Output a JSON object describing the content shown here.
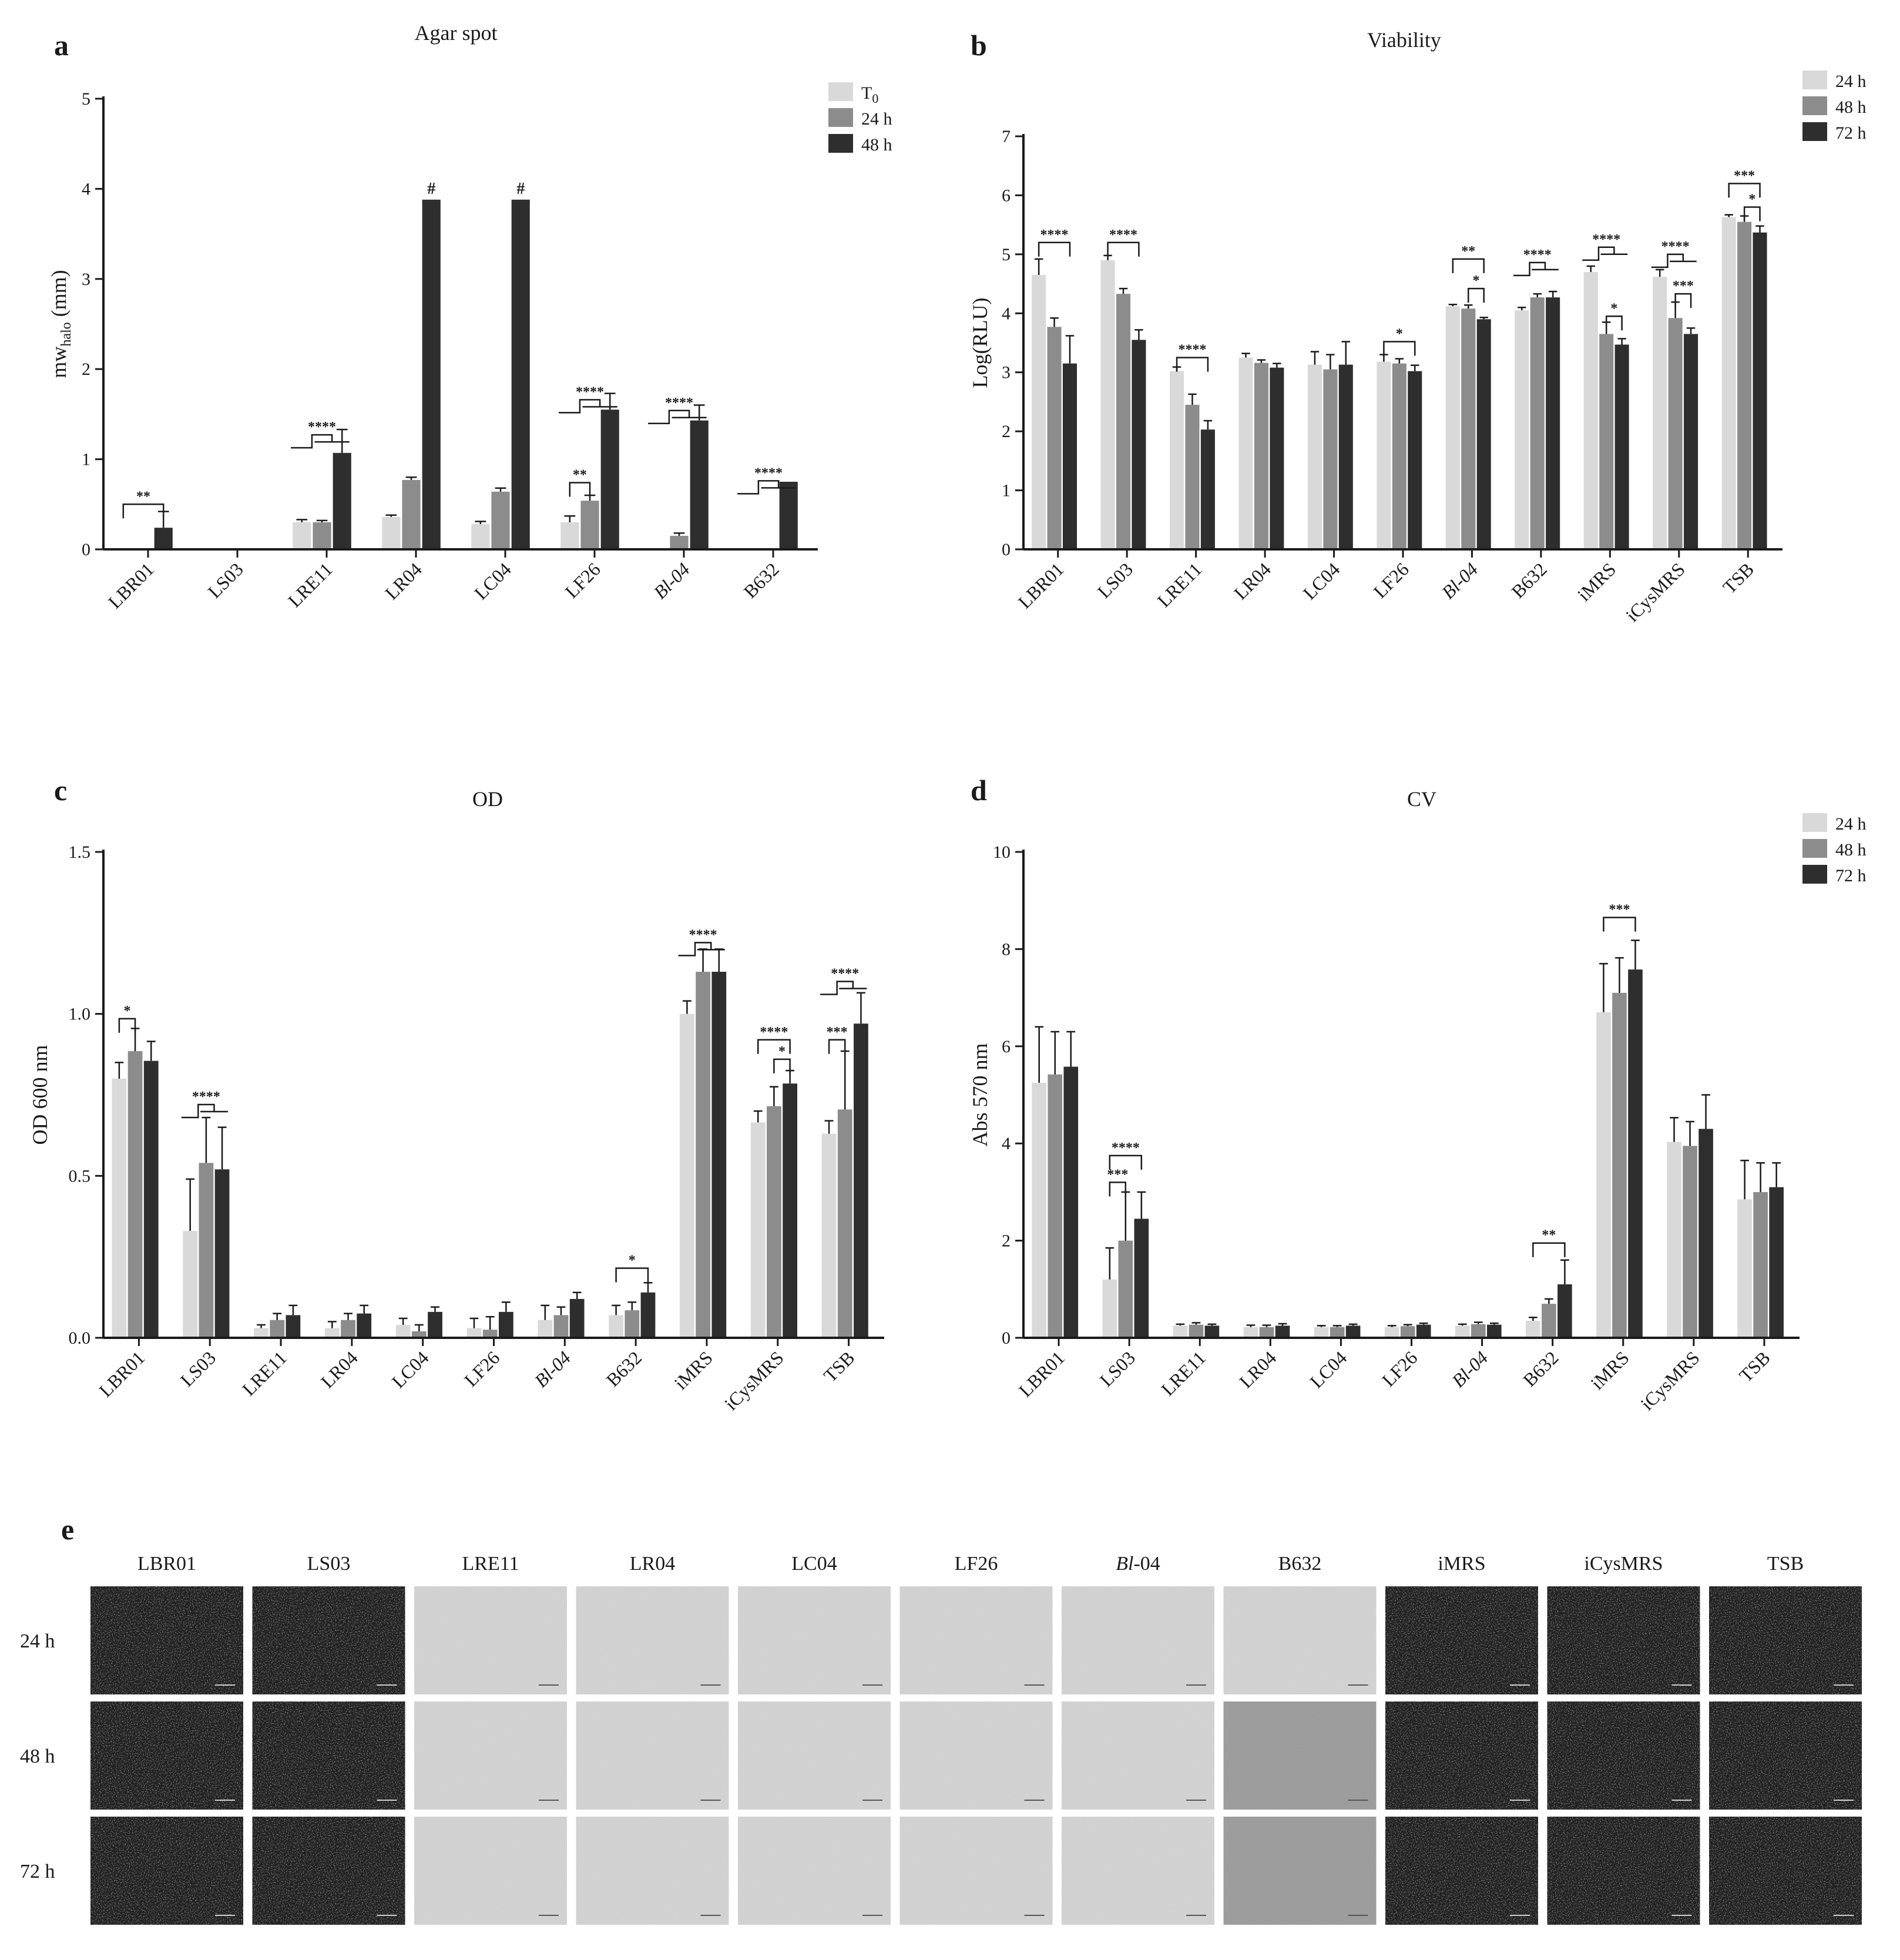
{
  "colors": {
    "light": "#d9d9d9",
    "mid": "#8c8c8c",
    "dark": "#2e2e2e",
    "axis": "#1a1a1a"
  },
  "chart_data": [
    {
      "panel": "a",
      "type": "bar",
      "title": "Agar spot",
      "ylabel": "mw_halo (mm)",
      "ylim": [
        0,
        5
      ],
      "yticks": [
        0,
        1,
        2,
        3,
        4,
        5
      ],
      "categories": [
        "LBR01",
        "LS03",
        "LRE11",
        "LR04",
        "LC04",
        "LF26",
        "Bl-04",
        "B632"
      ],
      "italic_categories": [
        "Bl-04"
      ],
      "legend_position": "top-right",
      "series": [
        {
          "name": "T0",
          "color": "light",
          "values": [
            0,
            0,
            0.3,
            0.36,
            0.28,
            0.3,
            0,
            0
          ],
          "errors": [
            0,
            0,
            0.03,
            0.02,
            0.03,
            0.07,
            0,
            0
          ]
        },
        {
          "name": "24 h",
          "color": "mid",
          "values": [
            0,
            0,
            0.3,
            0.77,
            0.64,
            0.54,
            0.15,
            0
          ],
          "errors": [
            0,
            0,
            0.02,
            0.03,
            0.04,
            0.06,
            0.03,
            0
          ]
        },
        {
          "name": "48 h",
          "color": "dark",
          "values": [
            0.24,
            0,
            1.07,
            3.88,
            3.88,
            1.55,
            1.43,
            0.75
          ],
          "errors": [
            0.18,
            0,
            0.26,
            0,
            0,
            0.18,
            0.17,
            0
          ]
        }
      ],
      "annotations": [
        {
          "type": "bracket",
          "from": [
            0,
            0
          ],
          "to": [
            0,
            2
          ],
          "y": 0.5,
          "label": "**"
        },
        {
          "type": "group",
          "from": [
            2,
            0
          ],
          "mid": [
            2,
            1
          ],
          "to": [
            2,
            2
          ],
          "y": 1.27,
          "label": "****"
        },
        {
          "type": "marker",
          "at": [
            3,
            2
          ],
          "label": "#"
        },
        {
          "type": "marker",
          "at": [
            4,
            2
          ],
          "label": "#"
        },
        {
          "type": "bracket",
          "from": [
            5,
            0
          ],
          "to": [
            5,
            1
          ],
          "y": 0.74,
          "label": "**"
        },
        {
          "type": "group",
          "from": [
            5,
            0
          ],
          "mid": [
            5,
            1
          ],
          "to": [
            5,
            2
          ],
          "y": 1.66,
          "label": "****"
        },
        {
          "type": "group",
          "from": [
            6,
            0
          ],
          "mid": [
            6,
            1
          ],
          "to": [
            6,
            2
          ],
          "y": 1.54,
          "label": "****"
        },
        {
          "type": "group",
          "from": [
            7,
            0
          ],
          "mid": [
            7,
            1
          ],
          "to": [
            7,
            2
          ],
          "y": 0.76,
          "label": "****"
        }
      ]
    },
    {
      "panel": "b",
      "type": "bar",
      "title": "Viability",
      "ylabel": "Log(RLU)",
      "ylim": [
        0,
        7
      ],
      "yticks": [
        0,
        1,
        2,
        3,
        4,
        5,
        6,
        7
      ],
      "categories": [
        "LBR01",
        "LS03",
        "LRE11",
        "LR04",
        "LC04",
        "LF26",
        "Bl-04",
        "B632",
        "iMRS",
        "iCysMRS",
        "TSB"
      ],
      "italic_categories": [
        "Bl-04"
      ],
      "legend_position": "top-right",
      "series": [
        {
          "name": "24 h",
          "color": "light",
          "values": [
            4.65,
            4.9,
            3.02,
            3.25,
            3.13,
            3.18,
            4.12,
            4.05,
            4.7,
            4.62,
            5.63
          ],
          "errors": [
            0.27,
            0.08,
            0.07,
            0.07,
            0.22,
            0.12,
            0.03,
            0.05,
            0.1,
            0.12,
            0.04
          ]
        },
        {
          "name": "48 h",
          "color": "mid",
          "values": [
            3.77,
            4.33,
            2.45,
            3.16,
            3.05,
            3.15,
            4.08,
            4.27,
            3.65,
            3.92,
            5.55
          ],
          "errors": [
            0.15,
            0.09,
            0.18,
            0.05,
            0.25,
            0.08,
            0.06,
            0.06,
            0.2,
            0.27,
            0.1
          ]
        },
        {
          "name": "72 h",
          "color": "dark",
          "values": [
            3.15,
            3.55,
            2.03,
            3.08,
            3.13,
            3.02,
            3.9,
            4.27,
            3.47,
            3.65,
            5.37
          ],
          "errors": [
            0.47,
            0.17,
            0.15,
            0.07,
            0.39,
            0.1,
            0.03,
            0.1,
            0.1,
            0.1,
            0.11
          ]
        }
      ],
      "annotations": [
        {
          "type": "bracket",
          "from": [
            0,
            0
          ],
          "to": [
            0,
            2
          ],
          "y": 5.2,
          "label": "****"
        },
        {
          "type": "bracket",
          "from": [
            1,
            0
          ],
          "to": [
            1,
            2
          ],
          "y": 5.2,
          "label": "****"
        },
        {
          "type": "bracket",
          "from": [
            2,
            0
          ],
          "to": [
            2,
            2
          ],
          "y": 3.25,
          "label": "****"
        },
        {
          "type": "bracket",
          "from": [
            5,
            0
          ],
          "to": [
            5,
            2
          ],
          "y": 3.52,
          "label": "*"
        },
        {
          "type": "bracket",
          "from": [
            6,
            0
          ],
          "to": [
            6,
            2
          ],
          "y": 4.92,
          "label": "**"
        },
        {
          "type": "bracket",
          "from": [
            6,
            1
          ],
          "to": [
            6,
            2
          ],
          "y": 4.42,
          "label": "*"
        },
        {
          "type": "group",
          "from": [
            7,
            0
          ],
          "mid": [
            7,
            1
          ],
          "to": [
            7,
            2
          ],
          "y": 4.86,
          "label": "****"
        },
        {
          "type": "group",
          "from": [
            8,
            0
          ],
          "mid": [
            8,
            1
          ],
          "to": [
            8,
            2
          ],
          "y": 5.12,
          "label": "****"
        },
        {
          "type": "bracket",
          "from": [
            8,
            1
          ],
          "to": [
            8,
            2
          ],
          "y": 3.95,
          "label": "*"
        },
        {
          "type": "group",
          "from": [
            9,
            0
          ],
          "mid": [
            9,
            1
          ],
          "to": [
            9,
            2
          ],
          "y": 5.0,
          "label": "****"
        },
        {
          "type": "bracket",
          "from": [
            9,
            1
          ],
          "to": [
            9,
            2
          ],
          "y": 4.33,
          "label": "***"
        },
        {
          "type": "bracket",
          "from": [
            10,
            0
          ],
          "to": [
            10,
            2
          ],
          "y": 6.2,
          "label": "***"
        },
        {
          "type": "bracket",
          "from": [
            10,
            1
          ],
          "to": [
            10,
            2
          ],
          "y": 5.8,
          "label": "*"
        }
      ]
    },
    {
      "panel": "c",
      "type": "bar",
      "title": "OD",
      "ylabel": "OD 600 nm",
      "ylim": [
        0,
        1.5
      ],
      "yticks": [
        0.0,
        0.5,
        1.0,
        1.5
      ],
      "ytick_labels": [
        "0.0",
        "0.5",
        "1.0",
        "1.5"
      ],
      "categories": [
        "LBR01",
        "LS03",
        "LRE11",
        "LR04",
        "LC04",
        "LF26",
        "Bl-04",
        "B632",
        "iMRS",
        "iCysMRS",
        "TSB"
      ],
      "italic_categories": [
        "Bl-04"
      ],
      "series": [
        {
          "name": "24 h",
          "color": "light",
          "values": [
            0.8,
            0.33,
            0.03,
            0.03,
            0.04,
            0.03,
            0.055,
            0.07,
            1.0,
            0.665,
            0.63
          ],
          "errors": [
            0.05,
            0.16,
            0.01,
            0.02,
            0.02,
            0.03,
            0.045,
            0.03,
            0.04,
            0.035,
            0.04
          ]
        },
        {
          "name": "48 h",
          "color": "mid",
          "values": [
            0.885,
            0.54,
            0.055,
            0.055,
            0.02,
            0.025,
            0.07,
            0.085,
            1.13,
            0.715,
            0.705
          ],
          "errors": [
            0.07,
            0.14,
            0.02,
            0.02,
            0.02,
            0.04,
            0.025,
            0.025,
            0.07,
            0.06,
            0.18
          ]
        },
        {
          "name": "72 h",
          "color": "dark",
          "values": [
            0.855,
            0.52,
            0.07,
            0.075,
            0.08,
            0.08,
            0.12,
            0.14,
            1.13,
            0.785,
            0.97
          ],
          "errors": [
            0.06,
            0.13,
            0.03,
            0.025,
            0.015,
            0.03,
            0.02,
            0.03,
            0.07,
            0.04,
            0.095
          ]
        }
      ],
      "annotations": [
        {
          "type": "bracket",
          "from": [
            0,
            0
          ],
          "to": [
            0,
            1
          ],
          "y": 0.985,
          "label": "*"
        },
        {
          "type": "group",
          "from": [
            1,
            0
          ],
          "mid": [
            1,
            1
          ],
          "to": [
            1,
            2
          ],
          "y": 0.72,
          "label": "****"
        },
        {
          "type": "bracket",
          "from": [
            7,
            0
          ],
          "to": [
            7,
            2
          ],
          "y": 0.215,
          "label": "*"
        },
        {
          "type": "group",
          "from": [
            8,
            0
          ],
          "mid": [
            8,
            1
          ],
          "to": [
            8,
            2
          ],
          "y": 1.22,
          "label": "****"
        },
        {
          "type": "bracket",
          "from": [
            9,
            0
          ],
          "to": [
            9,
            2
          ],
          "y": 0.92,
          "label": "****"
        },
        {
          "type": "bracket",
          "from": [
            9,
            1
          ],
          "to": [
            9,
            2
          ],
          "y": 0.86,
          "label": "*"
        },
        {
          "type": "group",
          "from": [
            10,
            0
          ],
          "mid": [
            10,
            1
          ],
          "to": [
            10,
            2
          ],
          "y": 1.1,
          "label": "****"
        },
        {
          "type": "bracket",
          "from": [
            10,
            0
          ],
          "to": [
            10,
            1
          ],
          "y": 0.92,
          "label": "***"
        }
      ]
    },
    {
      "panel": "d",
      "type": "bar",
      "title": "CV",
      "ylabel": "Abs 570 nm",
      "ylim": [
        0,
        10
      ],
      "yticks": [
        0,
        2,
        4,
        6,
        8,
        10
      ],
      "categories": [
        "LBR01",
        "LS03",
        "LRE11",
        "LR04",
        "LC04",
        "LF26",
        "Bl-04",
        "B632",
        "iMRS",
        "iCysMRS",
        "TSB"
      ],
      "italic_categories": [
        "Bl-04"
      ],
      "legend_position": "top-right",
      "series": [
        {
          "name": "24 h",
          "color": "light",
          "values": [
            5.25,
            1.2,
            0.25,
            0.22,
            0.22,
            0.22,
            0.25,
            0.35,
            6.7,
            4.03,
            2.85
          ],
          "errors": [
            1.15,
            0.65,
            0.03,
            0.04,
            0.03,
            0.03,
            0.03,
            0.07,
            1.0,
            0.5,
            0.8
          ]
        },
        {
          "name": "48 h",
          "color": "mid",
          "values": [
            5.42,
            2.0,
            0.27,
            0.22,
            0.22,
            0.24,
            0.28,
            0.7,
            7.1,
            3.95,
            3.0
          ],
          "errors": [
            0.88,
            1.0,
            0.04,
            0.04,
            0.03,
            0.03,
            0.04,
            0.1,
            0.72,
            0.5,
            0.6
          ]
        },
        {
          "name": "72 h",
          "color": "dark",
          "values": [
            5.58,
            2.45,
            0.25,
            0.25,
            0.25,
            0.27,
            0.27,
            1.1,
            7.58,
            4.3,
            3.1
          ],
          "errors": [
            0.72,
            0.55,
            0.03,
            0.04,
            0.03,
            0.03,
            0.03,
            0.5,
            0.6,
            0.7,
            0.5
          ]
        }
      ],
      "annotations": [
        {
          "type": "bracket",
          "from": [
            1,
            0
          ],
          "to": [
            1,
            1
          ],
          "y": 3.2,
          "label": "***"
        },
        {
          "type": "bracket",
          "from": [
            1,
            0
          ],
          "to": [
            1,
            2
          ],
          "y": 3.75,
          "label": "****"
        },
        {
          "type": "bracket",
          "from": [
            7,
            0
          ],
          "to": [
            7,
            2
          ],
          "y": 1.95,
          "label": "**"
        },
        {
          "type": "bracket",
          "from": [
            8,
            0
          ],
          "to": [
            8,
            2
          ],
          "y": 8.65,
          "label": "***"
        }
      ]
    }
  ],
  "panel_e": {
    "letter": "e",
    "columns": [
      "LBR01",
      "LS03",
      "LRE11",
      "LR04",
      "LC04",
      "LF26",
      "Bl-04",
      "B632",
      "iMRS",
      "iCysMRS",
      "TSB"
    ],
    "italic_columns": [
      "Bl-04"
    ],
    "rows": [
      "24 h",
      "48 h",
      "72 h"
    ],
    "tile_tones": [
      [
        "dark",
        "dark",
        "light",
        "light",
        "light",
        "light",
        "light",
        "light",
        "dark",
        "dark",
        "dark"
      ],
      [
        "dark",
        "dark",
        "light",
        "light",
        "light",
        "light",
        "light",
        "medium",
        "dark",
        "dark",
        "dark"
      ],
      [
        "dark",
        "dark",
        "light",
        "light",
        "light",
        "light",
        "light",
        "medium",
        "dark",
        "dark",
        "dark"
      ]
    ]
  }
}
